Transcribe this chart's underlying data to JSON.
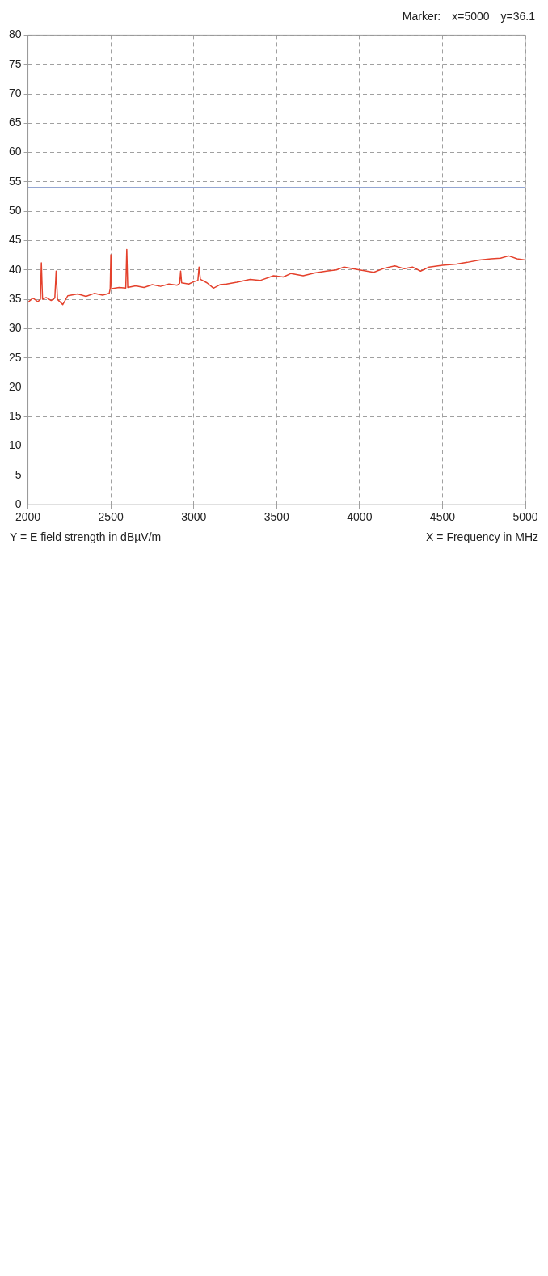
{
  "chart_data": {
    "type": "line",
    "xlabel": "X = Frequency in MHz",
    "ylabel": "Y = E field strength in dBµV/m",
    "annotations": [
      "Marker:",
      "x=5000",
      "y=36.1"
    ],
    "x": [
      2000,
      2030,
      2060,
      2075,
      2081,
      2088,
      2110,
      2140,
      2162,
      2170,
      2178,
      2210,
      2240,
      2300,
      2350,
      2400,
      2450,
      2490,
      2496,
      2500,
      2505,
      2550,
      2590,
      2596,
      2602,
      2650,
      2700,
      2750,
      2800,
      2850,
      2900,
      2915,
      2921,
      2927,
      2970,
      3000,
      3025,
      3032,
      3040,
      3080,
      3119,
      3160,
      3198,
      3260,
      3340,
      3400,
      3481,
      3540,
      3587,
      3660,
      3730,
      3800,
      3860,
      3906,
      4000,
      4085,
      4150,
      4213,
      4270,
      4319,
      4368,
      4420,
      4500,
      4585,
      4650,
      4723,
      4794,
      4850,
      4900,
      4950,
      5000
    ],
    "series": [
      {
        "color": "#e4412c",
        "values": [
          34.5,
          35.2,
          34.6,
          35,
          41.2,
          35,
          35.3,
          34.8,
          35.2,
          39.8,
          35,
          34.1,
          35.6,
          35.9,
          35.5,
          36,
          35.7,
          36,
          36.8,
          42.6,
          36.8,
          37,
          36.9,
          43.5,
          37,
          37.3,
          37,
          37.5,
          37.2,
          37.6,
          37.4,
          37.7,
          39.8,
          37.8,
          37.6,
          38,
          38.2,
          40.5,
          38.4,
          37.8,
          36.9,
          37.5,
          37.6,
          37.9,
          38.4,
          38.2,
          39,
          38.8,
          39.4,
          39,
          39.5,
          39.8,
          40,
          40.5,
          40,
          39.6,
          40.3,
          40.7,
          40.2,
          40.5,
          39.8,
          40.5,
          40.8,
          41,
          41.3,
          41.7,
          41.9,
          42,
          42.4,
          41.9,
          41.7
        ]
      }
    ],
    "xlim": [
      2000,
      5000
    ],
    "xticks": [
      2000,
      2500,
      3000,
      3500,
      4000,
      4500,
      5000
    ],
    "ylim": [
      0,
      80
    ],
    "yticks": [
      0,
      5,
      10,
      15,
      20,
      25,
      30,
      35,
      40,
      45,
      50,
      55,
      60,
      65,
      70,
      75,
      80
    ],
    "ref_lines": [
      {
        "axis": "y",
        "value": 54,
        "color": "#2b4ea6",
        "line_style": "solid"
      }
    ],
    "grid": true,
    "legend": false,
    "marker": "none",
    "line_style": "solid"
  }
}
